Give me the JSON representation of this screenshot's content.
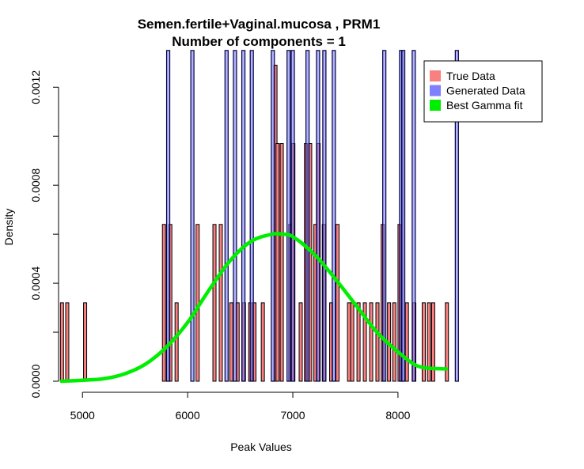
{
  "chart_data": {
    "type": "bar",
    "title": "Semen.fertile+Vaginal.mucosa , PRM1",
    "subtitle": "Number of components =  1",
    "xlabel": "Peak Values",
    "ylabel": "Density",
    "xlim": [
      4780,
      8580
    ],
    "ylim": [
      0,
      0.00133
    ],
    "x_ticks": [
      5000,
      6000,
      7000,
      8000
    ],
    "x_tick_labels": [
      "5000",
      "6000",
      "7000",
      "8000"
    ],
    "y_ticks": [
      0,
      0.0004,
      0.0008,
      0.0012
    ],
    "y_tick_labels": [
      "0.0000",
      "0.0004",
      "0.0008",
      "0.0012"
    ],
    "legend": {
      "position": "top-right",
      "entries": [
        {
          "label": "True Data",
          "color": "#f88080"
        },
        {
          "label": "Generated Data",
          "color": "#8080ff"
        },
        {
          "label": "Best Gamma fit",
          "color": "#00ee00"
        }
      ]
    },
    "bin_width": 30,
    "series": [
      {
        "name": "True Data",
        "color": "#f88080",
        "bin_starts": [
          4790,
          4840,
          5010,
          5760,
          5820,
          5880,
          6080,
          6240,
          6300,
          6400,
          6460,
          6520,
          6580,
          6620,
          6700,
          6820,
          6840,
          6880,
          6960,
          6990,
          7060,
          7110,
          7150,
          7200,
          7230,
          7280,
          7350,
          7410,
          7520,
          7550,
          7610,
          7670,
          7730,
          7790,
          7840,
          7900,
          7950,
          8000,
          8070,
          8140,
          8230,
          8280,
          8320,
          8450
        ],
        "values": [
          0.00032,
          0.00032,
          0.00032,
          0.00064,
          0.00064,
          0.00032,
          0.00064,
          0.00064,
          0.00064,
          0.00032,
          0.00032,
          0.00032,
          0.00032,
          0.00032,
          0.00032,
          0.00129,
          0.00097,
          0.00097,
          0.00064,
          0.00097,
          0.00032,
          0.00097,
          0.00097,
          0.00064,
          0.00097,
          0.00064,
          0.00032,
          0.00064,
          0.00032,
          0.00032,
          0.00032,
          0.00032,
          0.00032,
          0.00032,
          0.00064,
          0.00032,
          0.00032,
          0.00064,
          0.00032,
          0.00032,
          0.00032,
          0.00032,
          0.00032,
          0.00032
        ]
      },
      {
        "name": "Generated Data",
        "color": "#8080ff",
        "bin_starts": [
          5815,
          6045,
          6370,
          6450,
          6530,
          6610,
          6810,
          6960,
          7000,
          7140,
          7240,
          7300,
          7390,
          7870,
          8030,
          8050,
          8150,
          8560
        ],
        "values": [
          0.00135,
          0.00135,
          0.00135,
          0.00135,
          0.00135,
          0.00135,
          0.00135,
          0.00135,
          0.00135,
          0.00135,
          0.00135,
          0.00135,
          0.00135,
          0.00135,
          0.00135,
          0.00135,
          0.00135,
          0.00135
        ]
      },
      {
        "name": "Best Gamma fit",
        "type": "line",
        "color": "#00ee00",
        "x": [
          4800,
          5000,
          5200,
          5400,
          5600,
          5800,
          6000,
          6200,
          6400,
          6600,
          6800,
          6900,
          7000,
          7200,
          7400,
          7600,
          7800,
          8000,
          8200,
          8460
        ],
        "values": [
          0.0,
          4e-06,
          1e-05,
          3e-05,
          7e-05,
          0.00014,
          0.00024,
          0.00037,
          0.00049,
          0.00057,
          0.0006,
          0.0006,
          0.00059,
          0.00052,
          0.00042,
          0.00031,
          0.0002,
          0.00012,
          6e-05,
          5e-05
        ]
      }
    ]
  }
}
